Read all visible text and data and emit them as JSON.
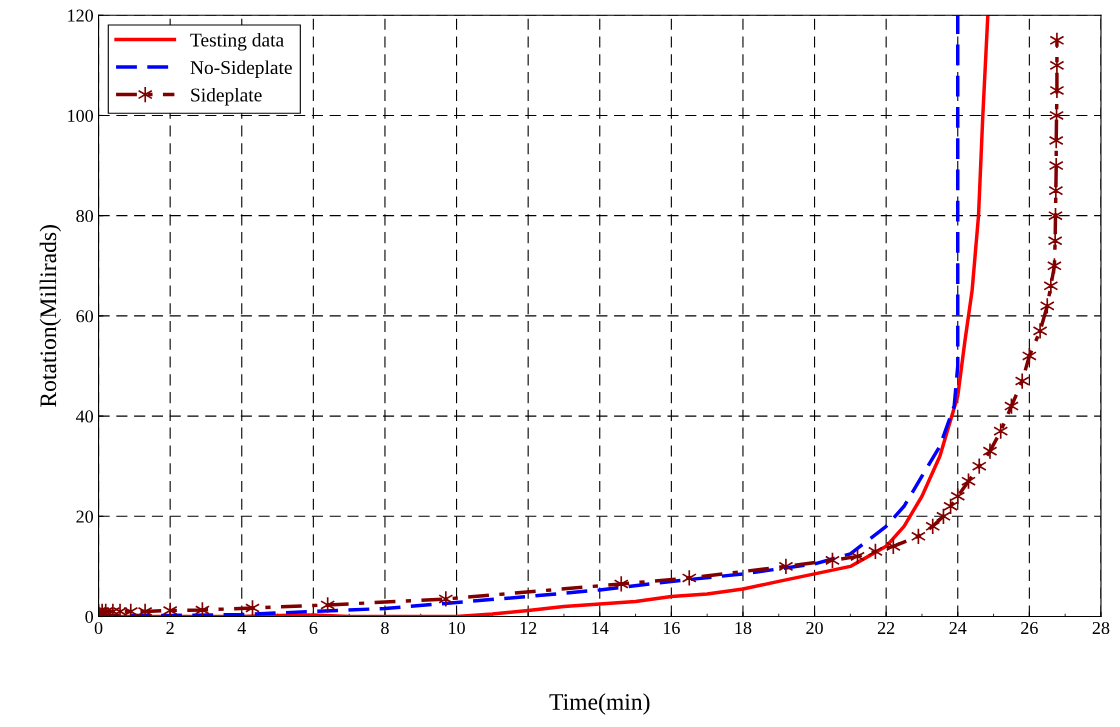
{
  "chart_data": {
    "type": "line",
    "xlabel": "Time(min)",
    "ylabel": "Rotation(Millirads)",
    "xlim": [
      0,
      28
    ],
    "xticks": [
      0,
      2,
      4,
      6,
      8,
      10,
      12,
      14,
      16,
      18,
      20,
      22,
      24,
      26,
      28
    ],
    "ylim": [
      0,
      120
    ],
    "yticks": [
      0,
      20,
      40,
      60,
      80,
      100,
      120
    ],
    "grid": true,
    "legend": "top left",
    "series": [
      {
        "name": "Testing data",
        "color": "#ff0000",
        "line_style": "solid",
        "marker": "none",
        "x": [
          0,
          2,
          4,
          5,
          6,
          7,
          8,
          9,
          10,
          11,
          12,
          13,
          14,
          15,
          16,
          17,
          18,
          19,
          20,
          21,
          21.5,
          22,
          22.5,
          23,
          23.5,
          24,
          24.2,
          24.4,
          24.58,
          24.7,
          24.84
        ],
        "values": [
          0,
          0,
          0,
          0.2,
          0.3,
          0,
          0,
          0,
          0,
          0.5,
          1.2,
          2,
          2.5,
          3,
          4,
          4.5,
          5.5,
          7,
          8.5,
          10,
          12,
          14,
          18,
          24,
          32,
          44,
          55,
          65,
          80,
          100,
          120
        ]
      },
      {
        "name": "No-Sideplate",
        "color": "#0000ff",
        "line_style": "dashed",
        "marker": "none",
        "x": [
          0,
          2,
          4,
          6,
          8,
          10,
          12,
          14,
          16,
          18,
          20,
          21,
          22,
          22.5,
          23,
          23.5,
          23.9,
          24,
          24
        ],
        "values": [
          0.2,
          0.2,
          0.4,
          1,
          1.6,
          2.8,
          4,
          5.3,
          7,
          8.5,
          10.5,
          12.5,
          18,
          22,
          28,
          34,
          42,
          50,
          120
        ]
      },
      {
        "name": "Sideplate",
        "color": "#800000",
        "line_style": "dashdot",
        "marker": "cross",
        "x": [
          0,
          0,
          0.1,
          0.2,
          0.4,
          0.6,
          0.9,
          1.3,
          2,
          2.9,
          4.3,
          6.4,
          9.7,
          14.6,
          16.5,
          19.2,
          20.5,
          21.2,
          21.7,
          22.2,
          22.9,
          23.3,
          23.6,
          23.8,
          24,
          24.3,
          24.6,
          24.9,
          25.2,
          25.5,
          25.8,
          26.0,
          26.3,
          26.5,
          26.6,
          26.7,
          26.72,
          26.73,
          26.74,
          26.75,
          26.75,
          26.76,
          26.77,
          26.77,
          26.77
        ],
        "values": [
          0,
          1,
          1,
          1,
          1,
          1,
          1,
          1,
          1.2,
          1.3,
          1.7,
          2.3,
          3.5,
          6.5,
          7.7,
          10,
          11.2,
          12,
          13,
          14,
          16,
          18,
          20,
          22,
          24,
          27,
          30,
          33,
          37,
          42,
          47,
          52,
          57,
          62,
          66,
          70,
          75,
          80,
          85,
          90,
          95,
          100,
          105,
          110,
          115
        ]
      }
    ]
  }
}
